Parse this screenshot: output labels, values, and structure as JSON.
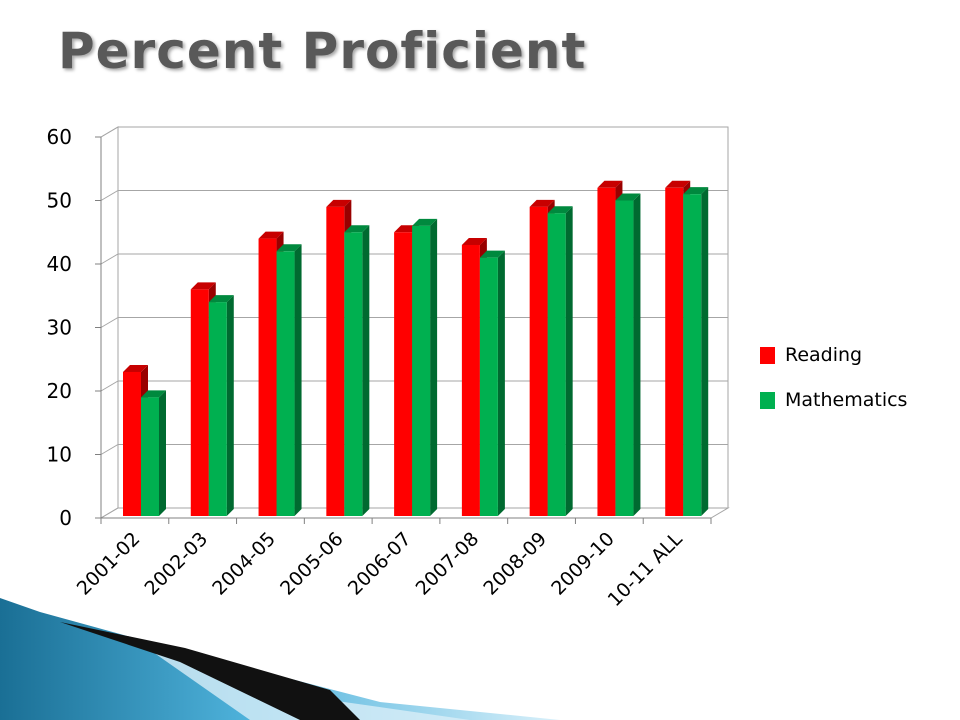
{
  "slide": {
    "title": "Percent Proficient"
  },
  "chart_data": {
    "type": "bar",
    "title": "",
    "xlabel": "",
    "ylabel": "",
    "categories": [
      "2001-02",
      "2002-03",
      "2004-05",
      "2005-06",
      "2006-07",
      "2007-08",
      "2008-09",
      "2009-10",
      "10-11 ALL"
    ],
    "series": [
      {
        "name": "Reading",
        "color": "#ff0000",
        "values": [
          23,
          36,
          44,
          49,
          45,
          43,
          49,
          52,
          52
        ]
      },
      {
        "name": "Mathematics",
        "color": "#00b050",
        "values": [
          19,
          34,
          42,
          45,
          46,
          41,
          48,
          50,
          51
        ]
      }
    ],
    "ylim": [
      0,
      60
    ],
    "yticks": [
      0,
      10,
      20,
      30,
      40,
      50,
      60
    ],
    "grid": true,
    "legend": "right",
    "style": "3d-clustered-column"
  }
}
